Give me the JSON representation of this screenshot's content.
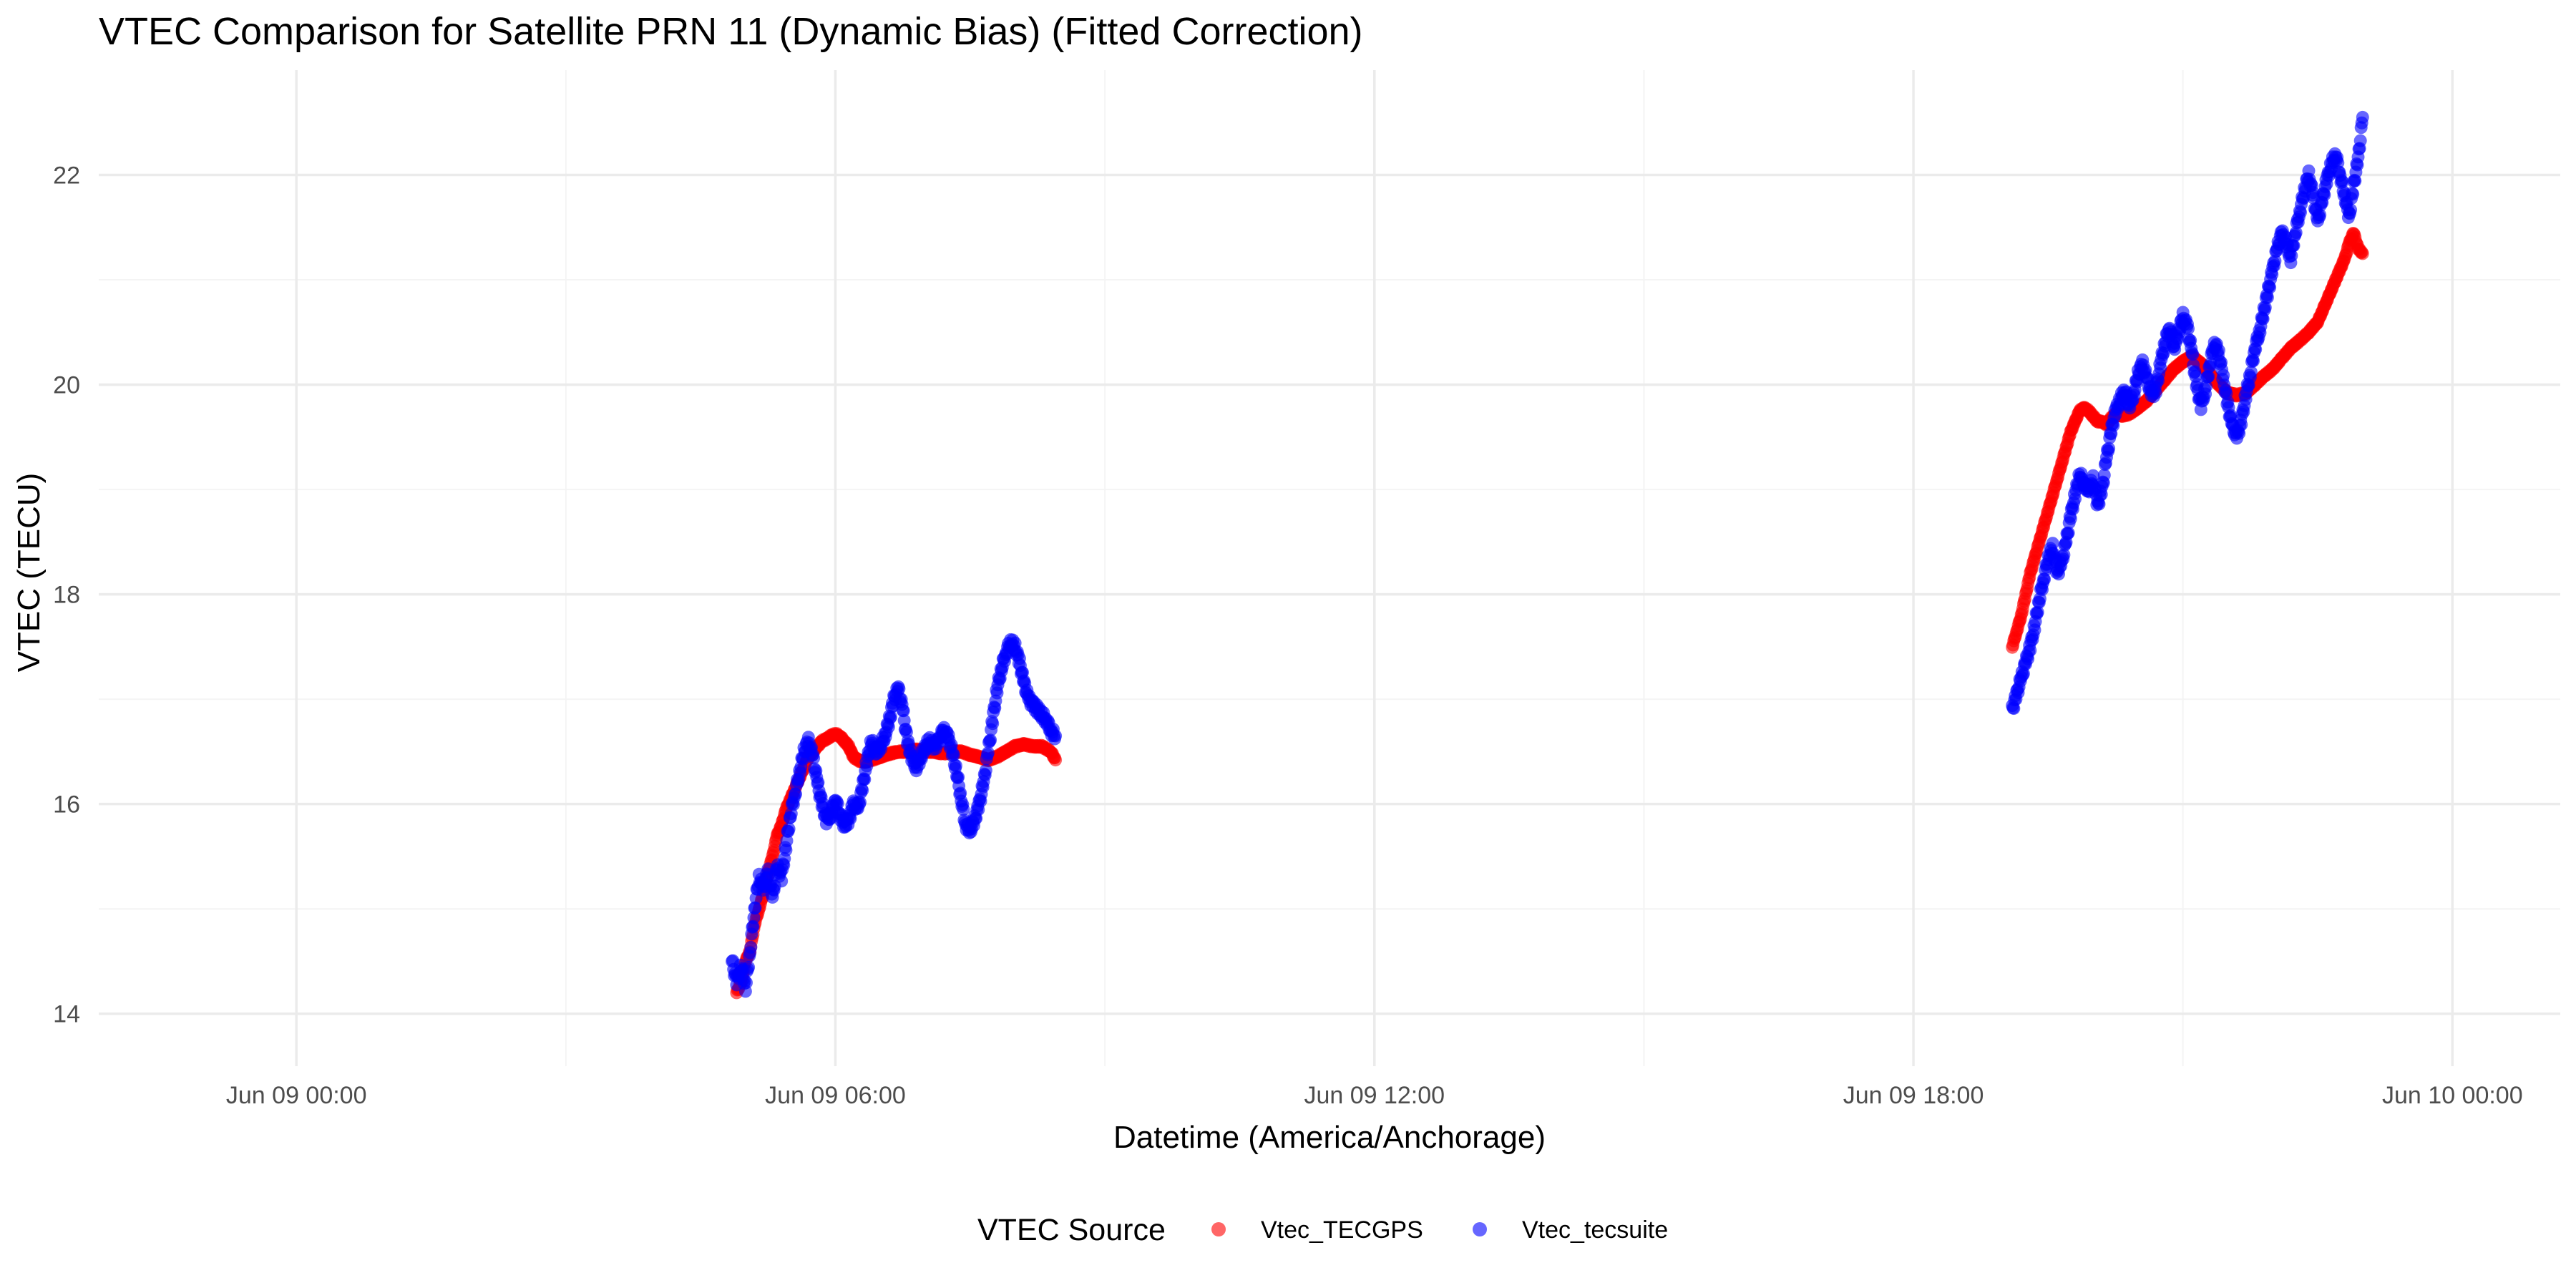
{
  "chart_data": {
    "type": "scatter",
    "title": "VTEC Comparison for Satellite PRN 11 (Dynamic Bias)   (Fitted Correction)",
    "xlabel": "Datetime (America/Anchorage)",
    "ylabel": "VTEC (TECU)",
    "x_unit": "hours since Jun 09 00:00",
    "xlim": [
      -2.2,
      25.2
    ],
    "ylim": [
      13.5,
      23.0
    ],
    "x_ticks": [
      {
        "value": 0,
        "label": "Jun 09 00:00"
      },
      {
        "value": 6,
        "label": "Jun 09 06:00"
      },
      {
        "value": 12,
        "label": "Jun 09 12:00"
      },
      {
        "value": 18,
        "label": "Jun 09 18:00"
      },
      {
        "value": 24,
        "label": "Jun 10 00:00"
      }
    ],
    "x_minor_ticks": [
      3,
      9,
      15,
      21
    ],
    "y_ticks": [
      {
        "value": 14,
        "label": "14"
      },
      {
        "value": 16,
        "label": "16"
      },
      {
        "value": 18,
        "label": "18"
      },
      {
        "value": 20,
        "label": "20"
      },
      {
        "value": 22,
        "label": "22"
      }
    ],
    "y_minor_ticks": [
      15,
      17,
      19,
      21
    ],
    "grid": true,
    "legend": {
      "title": "VTEC Source",
      "position": "bottom"
    },
    "series": [
      {
        "name": "Vtec_TECGPS",
        "color": "#ff0000",
        "points": [
          [
            4.9,
            14.2
          ],
          [
            4.95,
            14.3
          ],
          [
            5.0,
            14.5
          ],
          [
            5.05,
            14.6
          ],
          [
            5.1,
            14.85
          ],
          [
            5.15,
            15.0
          ],
          [
            5.2,
            15.15
          ],
          [
            5.25,
            15.35
          ],
          [
            5.3,
            15.5
          ],
          [
            5.35,
            15.7
          ],
          [
            5.4,
            15.8
          ],
          [
            5.45,
            15.95
          ],
          [
            5.5,
            16.05
          ],
          [
            5.55,
            16.15
          ],
          [
            5.6,
            16.25
          ],
          [
            5.65,
            16.35
          ],
          [
            5.7,
            16.45
          ],
          [
            5.75,
            16.5
          ],
          [
            5.8,
            16.55
          ],
          [
            5.85,
            16.6
          ],
          [
            5.9,
            16.62
          ],
          [
            5.95,
            16.65
          ],
          [
            6.0,
            16.67
          ],
          [
            6.05,
            16.65
          ],
          [
            6.1,
            16.6
          ],
          [
            6.15,
            16.55
          ],
          [
            6.2,
            16.45
          ],
          [
            6.25,
            16.42
          ],
          [
            6.3,
            16.4
          ],
          [
            6.4,
            16.42
          ],
          [
            6.5,
            16.45
          ],
          [
            6.6,
            16.48
          ],
          [
            6.7,
            16.5
          ],
          [
            6.8,
            16.5
          ],
          [
            6.9,
            16.52
          ],
          [
            7.0,
            16.5
          ],
          [
            7.1,
            16.5
          ],
          [
            7.2,
            16.48
          ],
          [
            7.3,
            16.5
          ],
          [
            7.4,
            16.5
          ],
          [
            7.5,
            16.47
          ],
          [
            7.6,
            16.45
          ],
          [
            7.7,
            16.42
          ],
          [
            7.8,
            16.45
          ],
          [
            7.9,
            16.5
          ],
          [
            8.0,
            16.55
          ],
          [
            8.1,
            16.57
          ],
          [
            8.2,
            16.55
          ],
          [
            8.3,
            16.55
          ],
          [
            8.4,
            16.5
          ],
          [
            8.45,
            16.42
          ],
          [
            19.1,
            17.5
          ],
          [
            19.15,
            17.65
          ],
          [
            19.2,
            17.8
          ],
          [
            19.25,
            18.0
          ],
          [
            19.3,
            18.2
          ],
          [
            19.35,
            18.35
          ],
          [
            19.4,
            18.5
          ],
          [
            19.45,
            18.65
          ],
          [
            19.5,
            18.8
          ],
          [
            19.55,
            18.95
          ],
          [
            19.6,
            19.1
          ],
          [
            19.65,
            19.25
          ],
          [
            19.7,
            19.4
          ],
          [
            19.75,
            19.55
          ],
          [
            19.8,
            19.65
          ],
          [
            19.85,
            19.75
          ],
          [
            19.9,
            19.78
          ],
          [
            19.95,
            19.75
          ],
          [
            20.0,
            19.7
          ],
          [
            20.05,
            19.65
          ],
          [
            20.1,
            19.65
          ],
          [
            20.15,
            19.62
          ],
          [
            20.2,
            19.68
          ],
          [
            20.25,
            19.72
          ],
          [
            20.3,
            19.7
          ],
          [
            20.4,
            19.72
          ],
          [
            20.5,
            19.78
          ],
          [
            20.6,
            19.85
          ],
          [
            20.7,
            19.95
          ],
          [
            20.8,
            20.05
          ],
          [
            20.9,
            20.15
          ],
          [
            21.0,
            20.22
          ],
          [
            21.1,
            20.27
          ],
          [
            21.2,
            20.2
          ],
          [
            21.3,
            20.1
          ],
          [
            21.4,
            20.0
          ],
          [
            21.5,
            19.92
          ],
          [
            21.6,
            19.9
          ],
          [
            21.7,
            19.92
          ],
          [
            21.8,
            20.0
          ],
          [
            21.9,
            20.08
          ],
          [
            22.0,
            20.15
          ],
          [
            22.1,
            20.25
          ],
          [
            22.2,
            20.35
          ],
          [
            22.3,
            20.42
          ],
          [
            22.4,
            20.5
          ],
          [
            22.5,
            20.6
          ],
          [
            22.55,
            20.7
          ],
          [
            22.6,
            20.8
          ],
          [
            22.65,
            20.9
          ],
          [
            22.7,
            21.0
          ],
          [
            22.75,
            21.1
          ],
          [
            22.8,
            21.2
          ],
          [
            22.85,
            21.35
          ],
          [
            22.9,
            21.45
          ],
          [
            22.95,
            21.3
          ],
          [
            23.0,
            21.25
          ]
        ]
      },
      {
        "name": "Vtec_tecsuite",
        "color": "#0000ff",
        "points": [
          [
            4.85,
            14.5
          ],
          [
            4.9,
            14.3
          ],
          [
            4.95,
            14.45
          ],
          [
            5.0,
            14.25
          ],
          [
            5.05,
            14.6
          ],
          [
            5.1,
            15.0
          ],
          [
            5.15,
            15.3
          ],
          [
            5.2,
            15.2
          ],
          [
            5.25,
            15.35
          ],
          [
            5.3,
            15.1
          ],
          [
            5.35,
            15.4
          ],
          [
            5.4,
            15.3
          ],
          [
            5.45,
            15.6
          ],
          [
            5.5,
            15.9
          ],
          [
            5.55,
            16.1
          ],
          [
            5.6,
            16.3
          ],
          [
            5.65,
            16.5
          ],
          [
            5.7,
            16.6
          ],
          [
            5.75,
            16.45
          ],
          [
            5.8,
            16.2
          ],
          [
            5.85,
            16.0
          ],
          [
            5.9,
            15.85
          ],
          [
            5.95,
            15.9
          ],
          [
            6.0,
            16.05
          ],
          [
            6.05,
            15.9
          ],
          [
            6.1,
            15.8
          ],
          [
            6.15,
            15.85
          ],
          [
            6.2,
            16.0
          ],
          [
            6.25,
            15.95
          ],
          [
            6.3,
            16.15
          ],
          [
            6.35,
            16.4
          ],
          [
            6.4,
            16.6
          ],
          [
            6.45,
            16.5
          ],
          [
            6.5,
            16.55
          ],
          [
            6.55,
            16.65
          ],
          [
            6.6,
            16.8
          ],
          [
            6.65,
            17.0
          ],
          [
            6.7,
            17.1
          ],
          [
            6.75,
            16.9
          ],
          [
            6.8,
            16.6
          ],
          [
            6.85,
            16.45
          ],
          [
            6.9,
            16.35
          ],
          [
            6.95,
            16.45
          ],
          [
            7.0,
            16.55
          ],
          [
            7.05,
            16.6
          ],
          [
            7.1,
            16.55
          ],
          [
            7.15,
            16.6
          ],
          [
            7.2,
            16.7
          ],
          [
            7.25,
            16.65
          ],
          [
            7.3,
            16.5
          ],
          [
            7.35,
            16.3
          ],
          [
            7.4,
            16.05
          ],
          [
            7.45,
            15.8
          ],
          [
            7.5,
            15.75
          ],
          [
            7.55,
            15.85
          ],
          [
            7.6,
            16.0
          ],
          [
            7.65,
            16.2
          ],
          [
            7.7,
            16.5
          ],
          [
            7.75,
            16.8
          ],
          [
            7.8,
            17.1
          ],
          [
            7.85,
            17.3
          ],
          [
            7.9,
            17.45
          ],
          [
            7.95,
            17.55
          ],
          [
            8.0,
            17.5
          ],
          [
            8.05,
            17.35
          ],
          [
            8.1,
            17.15
          ],
          [
            8.15,
            17.0
          ],
          [
            8.2,
            16.95
          ],
          [
            8.25,
            16.9
          ],
          [
            8.3,
            16.85
          ],
          [
            8.35,
            16.8
          ],
          [
            8.4,
            16.7
          ],
          [
            8.45,
            16.65
          ],
          [
            19.1,
            16.9
          ],
          [
            19.15,
            17.05
          ],
          [
            19.2,
            17.2
          ],
          [
            19.25,
            17.35
          ],
          [
            19.3,
            17.5
          ],
          [
            19.35,
            17.7
          ],
          [
            19.4,
            17.95
          ],
          [
            19.45,
            18.15
          ],
          [
            19.5,
            18.35
          ],
          [
            19.55,
            18.45
          ],
          [
            19.6,
            18.2
          ],
          [
            19.65,
            18.3
          ],
          [
            19.7,
            18.5
          ],
          [
            19.75,
            18.75
          ],
          [
            19.8,
            18.95
          ],
          [
            19.85,
            19.15
          ],
          [
            19.9,
            19.05
          ],
          [
            19.95,
            19.0
          ],
          [
            20.0,
            19.1
          ],
          [
            20.05,
            18.85
          ],
          [
            20.1,
            19.0
          ],
          [
            20.15,
            19.3
          ],
          [
            20.2,
            19.55
          ],
          [
            20.25,
            19.75
          ],
          [
            20.3,
            19.85
          ],
          [
            20.35,
            19.95
          ],
          [
            20.4,
            19.8
          ],
          [
            20.45,
            19.9
          ],
          [
            20.5,
            20.1
          ],
          [
            20.55,
            20.2
          ],
          [
            20.6,
            20.05
          ],
          [
            20.65,
            19.9
          ],
          [
            20.7,
            19.95
          ],
          [
            20.75,
            20.2
          ],
          [
            20.8,
            20.4
          ],
          [
            20.85,
            20.55
          ],
          [
            20.9,
            20.35
          ],
          [
            20.95,
            20.5
          ],
          [
            21.0,
            20.65
          ],
          [
            21.05,
            20.55
          ],
          [
            21.1,
            20.3
          ],
          [
            21.15,
            20.0
          ],
          [
            21.2,
            19.8
          ],
          [
            21.25,
            19.95
          ],
          [
            21.3,
            20.2
          ],
          [
            21.35,
            20.4
          ],
          [
            21.4,
            20.3
          ],
          [
            21.45,
            20.05
          ],
          [
            21.5,
            19.8
          ],
          [
            21.55,
            19.6
          ],
          [
            21.6,
            19.5
          ],
          [
            21.65,
            19.65
          ],
          [
            21.7,
            19.9
          ],
          [
            21.75,
            20.1
          ],
          [
            21.8,
            20.35
          ],
          [
            21.85,
            20.5
          ],
          [
            21.9,
            20.7
          ],
          [
            21.95,
            20.9
          ],
          [
            22.0,
            21.1
          ],
          [
            22.05,
            21.3
          ],
          [
            22.1,
            21.45
          ],
          [
            22.15,
            21.35
          ],
          [
            22.2,
            21.2
          ],
          [
            22.25,
            21.45
          ],
          [
            22.3,
            21.65
          ],
          [
            22.35,
            21.85
          ],
          [
            22.4,
            22.0
          ],
          [
            22.45,
            21.8
          ],
          [
            22.5,
            21.55
          ],
          [
            22.55,
            21.75
          ],
          [
            22.6,
            21.95
          ],
          [
            22.65,
            22.1
          ],
          [
            22.7,
            22.2
          ],
          [
            22.75,
            22.0
          ],
          [
            22.8,
            21.8
          ],
          [
            22.85,
            21.6
          ],
          [
            22.9,
            21.9
          ],
          [
            22.95,
            22.15
          ],
          [
            23.0,
            22.55
          ]
        ]
      }
    ]
  }
}
